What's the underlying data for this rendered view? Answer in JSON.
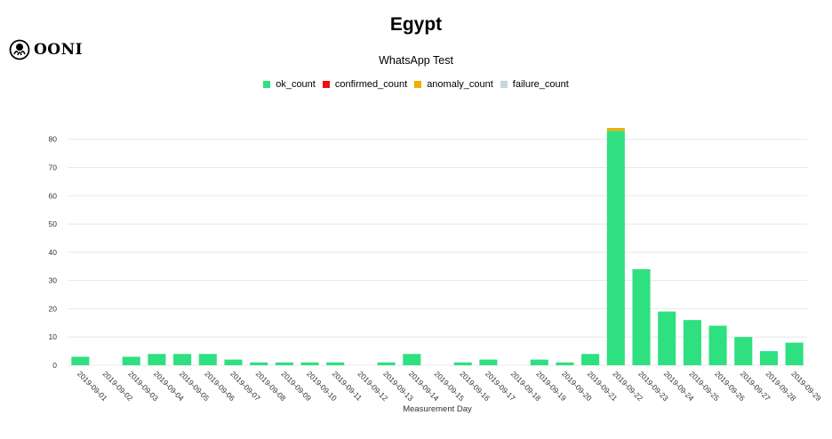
{
  "title": "Egypt",
  "subtitle": "WhatsApp Test",
  "logo_text": "OONI",
  "colors": {
    "ok_count": "#2ee080",
    "confirmed_count": "#f01010",
    "anomaly_count": "#f0b000",
    "failure_count": "#c8d4dc",
    "grid": "#e8e8e8"
  },
  "chart_data": {
    "type": "bar",
    "stacked": true,
    "title": "Egypt",
    "subtitle": "WhatsApp Test",
    "xlabel": "Measurement Day",
    "ylabel": "",
    "ylim": [
      0,
      84
    ],
    "yticks": [
      0,
      10,
      20,
      30,
      40,
      50,
      60,
      70,
      80
    ],
    "legend_position": "top",
    "grid": true,
    "categories": [
      "2019-09-01",
      "2019-09-02",
      "2019-09-03",
      "2019-09-04",
      "2019-09-05",
      "2019-09-06",
      "2019-09-07",
      "2019-09-08",
      "2019-09-09",
      "2019-09-10",
      "2019-09-11",
      "2019-09-12",
      "2019-09-13",
      "2019-09-14",
      "2019-09-15",
      "2019-09-16",
      "2019-09-17",
      "2019-09-18",
      "2019-09-19",
      "2019-09-20",
      "2019-09-21",
      "2019-09-22",
      "2019-09-23",
      "2019-09-24",
      "2019-09-25",
      "2019-09-26",
      "2019-09-27",
      "2019-09-28",
      "2019-09-29"
    ],
    "series": [
      {
        "name": "ok_count",
        "color": "#2ee080",
        "values": [
          3,
          0,
          3,
          4,
          4,
          4,
          2,
          1,
          1,
          1,
          1,
          0,
          1,
          4,
          0,
          1,
          2,
          0,
          2,
          1,
          4,
          83,
          34,
          19,
          16,
          14,
          10,
          5,
          8
        ]
      },
      {
        "name": "confirmed_count",
        "color": "#f01010",
        "values": [
          0,
          0,
          0,
          0,
          0,
          0,
          0,
          0,
          0,
          0,
          0,
          0,
          0,
          0,
          0,
          0,
          0,
          0,
          0,
          0,
          0,
          0,
          0,
          0,
          0,
          0,
          0,
          0,
          0
        ]
      },
      {
        "name": "anomaly_count",
        "color": "#f0b000",
        "values": [
          0,
          0,
          0,
          0,
          0,
          0,
          0,
          0,
          0,
          0,
          0,
          0,
          0,
          0,
          0,
          0,
          0,
          0,
          0,
          0,
          0,
          1,
          0,
          0,
          0,
          0,
          0,
          0,
          0
        ]
      },
      {
        "name": "failure_count",
        "color": "#c8d4dc",
        "values": [
          0,
          0,
          0,
          0,
          0,
          0,
          0,
          0,
          0,
          0,
          0,
          0,
          0,
          0,
          0,
          0,
          0,
          0,
          0,
          0,
          0,
          0,
          0,
          0,
          0,
          0,
          0,
          0,
          0
        ]
      }
    ]
  }
}
